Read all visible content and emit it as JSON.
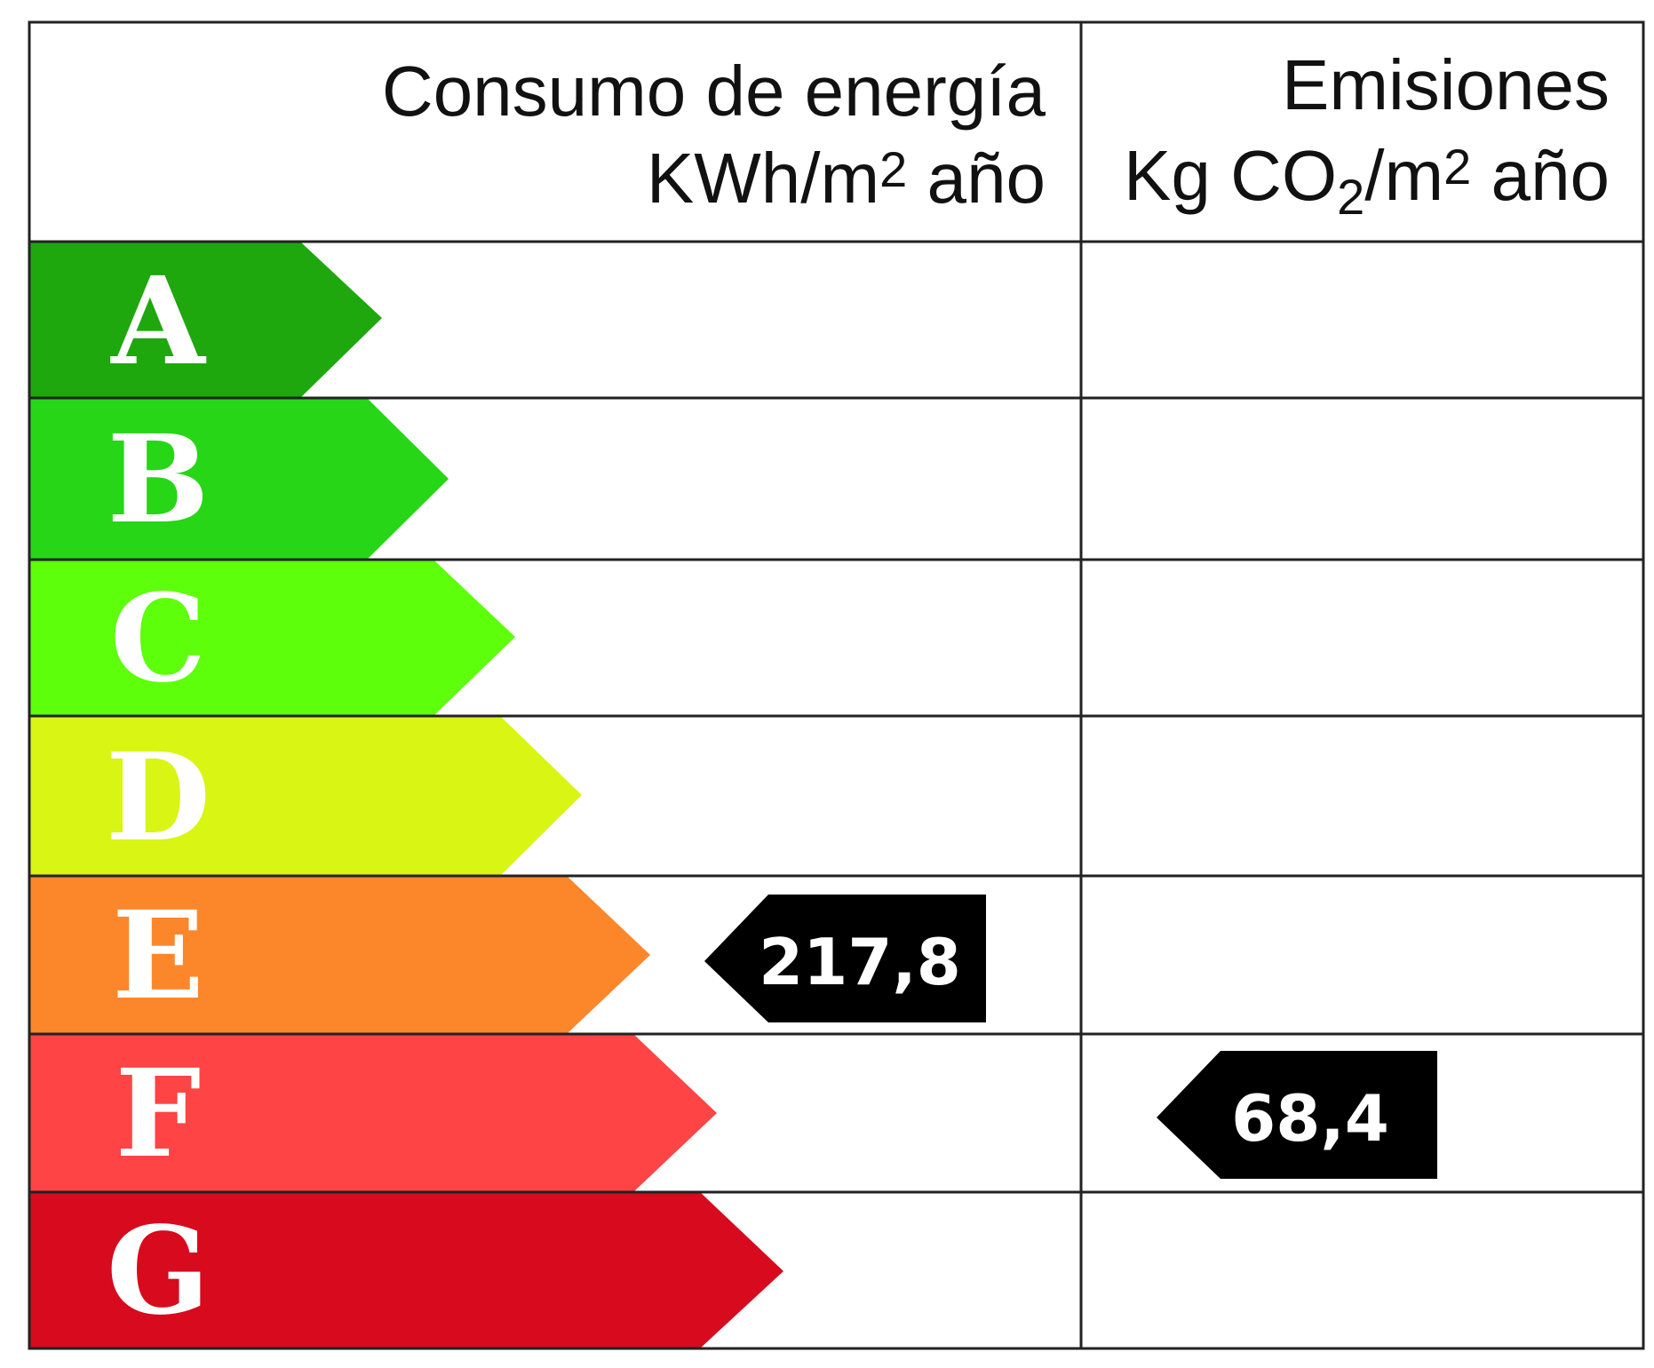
{
  "header": {
    "energy_line1": "Consumo de energía",
    "energy_line2_a": "KWh/m",
    "energy_line2_sup": "2",
    "energy_line2_b": " año",
    "emissions_line1": "Emisiones",
    "emissions_line2_a": "Kg CO",
    "emissions_line2_sub": "2",
    "emissions_line2_b": "/m",
    "emissions_line2_sup": "2",
    "emissions_line2_c": " año"
  },
  "classes": [
    {
      "letter": "A",
      "color": "#1fa70e"
    },
    {
      "letter": "B",
      "color": "#26d617"
    },
    {
      "letter": "C",
      "color": "#5dff0a"
    },
    {
      "letter": "D",
      "color": "#d8f514"
    },
    {
      "letter": "E",
      "color": "#fc872b"
    },
    {
      "letter": "F",
      "color": "#fe4444"
    },
    {
      "letter": "G",
      "color": "#d70a1e"
    }
  ],
  "energy_rating": {
    "class": "E",
    "value": "217,8"
  },
  "emissions_rating": {
    "class": "F",
    "value": "68,4"
  },
  "marker_color": "#000000"
}
